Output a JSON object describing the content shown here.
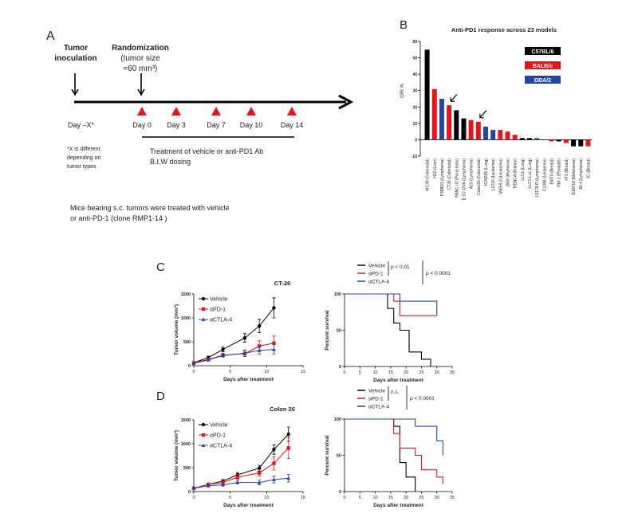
{
  "panel_labels": {
    "a": "A",
    "b": "B",
    "c": "C",
    "d": "D"
  },
  "timeline": {
    "inoculation_line1": "Tumor",
    "inoculation_line2": "inoculation",
    "randomization_title": "Randomization",
    "randomization_line2": "(tumor size",
    "randomization_line3": "≈60 mm³)",
    "day_x": "Day –X*",
    "dosing_days": [
      "Day 0",
      "Day 3",
      "Day 7",
      "Day 10",
      "Day 14"
    ],
    "footnote": [
      "*X is different",
      "depending on",
      "tumor types"
    ],
    "treatment": [
      "Treatment of vehicle or anti-PD1 Ab",
      "B.I.W dosing"
    ],
    "description": [
      "Mice bearing s.c. tumors were treated with vehicle",
      "or anti-PD-1 (clone RMP1-14 )"
    ],
    "triangle_color": "#e8141c"
  },
  "colors": {
    "C57BL/6": "#000000",
    "BALB/c": "#e8141c",
    "DBA/2": "#2346a8",
    "Vehicle": "#000000",
    "αPD-1": "#e8141c",
    "αCTLA-4": "#2346a8"
  },
  "chart_data": [
    {
      "type": "bar",
      "title": "Anti-PD1 response across 23 models",
      "ylabel": "GRI %",
      "ylim": [
        -10,
        60
      ],
      "yticks": [
        -10,
        0,
        10,
        20,
        30,
        40,
        50,
        60
      ],
      "legend": [
        "C57BL/6",
        "BALB/c",
        "DBA/2"
      ],
      "legend_placement": "top-right",
      "categories": [
        "MC38 (Colorectal)",
        "H22 (Liver)",
        "P388D1 (Lymphoma)",
        "CT26 (Colorectal)",
        "PANC 02 (Pancreatic)",
        "E.G7-OVA (Lymphoma)",
        "A20 (Lymphoma)",
        "Colon26 (Colorectal)",
        "KLN205 (Lung)",
        "L1210 (Leukemia)",
        "WEHI-3 (Leukemia)",
        "J558 (Myeloma)",
        "RENCA (Kidney)",
        "LLC1 (Lung)",
        "LLC1-Luc (Lung)",
        "L5178-R (Lymphoma)",
        "C1498 (Leukemia)",
        "EMT6 (Breast)",
        "RM-1 (Prostate)",
        "4T1 (Breast)",
        "B16F10 (Melanoma)",
        "EL4 (Lymphoma)",
        "JC (Breast)"
      ],
      "values": [
        55,
        31,
        25,
        21,
        18,
        13,
        12,
        11,
        8,
        6,
        6,
        5,
        3,
        1,
        1,
        1,
        0,
        -1,
        -1,
        -2,
        -4,
        -4,
        -4
      ],
      "strain": [
        "C57BL/6",
        "BALB/c",
        "DBA/2",
        "BALB/c",
        "C57BL/6",
        "C57BL/6",
        "BALB/c",
        "BALB/c",
        "DBA/2",
        "DBA/2",
        "BALB/c",
        "BALB/c",
        "BALB/c",
        "C57BL/6",
        "C57BL/6",
        "DBA/2",
        "C57BL/6",
        "BALB/c",
        "C57BL/6",
        "BALB/c",
        "C57BL/6",
        "C57BL/6",
        "BALB/c"
      ],
      "arrows_at": [
        "CT26 (Colorectal)",
        "Colon26 (Colorectal)"
      ]
    },
    {
      "type": "line",
      "title": "CT-26",
      "xlabel": "Days after treatment",
      "ylabel": "Tumor volume (mm³)",
      "xlim": [
        0,
        15
      ],
      "ylim": [
        0,
        1500
      ],
      "xticks": [
        0,
        5,
        10,
        15
      ],
      "yticks": [
        0,
        500,
        1000,
        1500
      ],
      "legend_placement": "top-left",
      "series": [
        {
          "name": "Vehicle",
          "marker": "circle",
          "x": [
            0,
            2,
            4,
            7,
            9,
            11
          ],
          "y": [
            60,
            170,
            340,
            580,
            830,
            1210
          ],
          "err": [
            10,
            30,
            50,
            90,
            140,
            210
          ]
        },
        {
          "name": "αPD-1",
          "marker": "square",
          "x": [
            0,
            2,
            4,
            7,
            9,
            11
          ],
          "y": [
            60,
            130,
            220,
            250,
            410,
            470
          ],
          "err": [
            10,
            20,
            40,
            60,
            110,
            150
          ]
        },
        {
          "name": "αCTLA-4",
          "marker": "triangle",
          "x": [
            0,
            2,
            4,
            7,
            9,
            11
          ],
          "y": [
            50,
            120,
            210,
            260,
            320,
            340
          ],
          "err": [
            10,
            20,
            30,
            70,
            80,
            100
          ]
        }
      ]
    },
    {
      "type": "line",
      "subtype": "survival-step",
      "xlabel": "Days after treatment",
      "ylabel": "Percent survival",
      "xlim": [
        0,
        35
      ],
      "ylim": [
        0,
        100
      ],
      "xticks": [
        0,
        5,
        10,
        15,
        20,
        25,
        30,
        35
      ],
      "yticks": [
        0,
        50,
        100
      ],
      "legend_placement": "top",
      "annotations": [
        "p < 0.01",
        "p < 0.0001"
      ],
      "series": [
        {
          "name": "Vehicle",
          "x": [
            0,
            14,
            16,
            18,
            21,
            25,
            28
          ],
          "y": [
            100,
            80,
            60,
            50,
            20,
            10,
            0
          ]
        },
        {
          "name": "αPD-1",
          "x": [
            0,
            16,
            18,
            30
          ],
          "y": [
            100,
            90,
            70,
            70
          ]
        },
        {
          "name": "αCTLA-4",
          "x": [
            0,
            18,
            30,
            30
          ],
          "y": [
            100,
            90,
            90,
            70
          ]
        }
      ]
    },
    {
      "type": "line",
      "title": "Colon 26",
      "xlabel": "Days after treatment",
      "ylabel": "Tumor volume (mm³)",
      "xlim": [
        0,
        15
      ],
      "ylim": [
        0,
        1500
      ],
      "xticks": [
        0,
        5,
        10,
        15
      ],
      "yticks": [
        0,
        500,
        1000,
        1500
      ],
      "legend_placement": "top-left",
      "series": [
        {
          "name": "Vehicle",
          "marker": "circle",
          "x": [
            0,
            2,
            4,
            6,
            9,
            11,
            13
          ],
          "y": [
            70,
            150,
            220,
            350,
            490,
            880,
            1200
          ],
          "err": [
            10,
            20,
            30,
            50,
            60,
            100,
            150
          ]
        },
        {
          "name": "αPD-1",
          "marker": "square",
          "x": [
            0,
            2,
            4,
            6,
            9,
            11,
            13
          ],
          "y": [
            70,
            150,
            190,
            300,
            390,
            590,
            910
          ],
          "err": [
            10,
            20,
            30,
            50,
            70,
            140,
            220
          ]
        },
        {
          "name": "αCTLA-4",
          "marker": "triangle",
          "x": [
            0,
            2,
            4,
            6,
            9,
            11,
            13
          ],
          "y": [
            70,
            120,
            140,
            190,
            190,
            250,
            280
          ],
          "err": [
            10,
            20,
            20,
            30,
            50,
            70,
            80
          ]
        }
      ]
    },
    {
      "type": "line",
      "subtype": "survival-step",
      "xlabel": "Days after treatment",
      "ylabel": "Percent survival",
      "xlim": [
        0,
        35
      ],
      "ylim": [
        0,
        100
      ],
      "xticks": [
        0,
        5,
        10,
        15,
        20,
        25,
        30,
        35
      ],
      "yticks": [
        0,
        50,
        100
      ],
      "legend_placement": "top",
      "annotations": [
        "n.s.",
        "p < 0.0001"
      ],
      "series": [
        {
          "name": "Vehicle",
          "x": [
            0,
            16,
            18,
            20,
            23
          ],
          "y": [
            100,
            90,
            40,
            20,
            0
          ]
        },
        {
          "name": "αPD-1",
          "x": [
            0,
            16,
            18,
            23,
            25,
            30,
            32,
            32
          ],
          "y": [
            100,
            80,
            60,
            50,
            30,
            20,
            10,
            10
          ]
        },
        {
          "name": "αCTLA-4",
          "x": [
            0,
            23,
            30,
            32,
            32
          ],
          "y": [
            100,
            90,
            70,
            50,
            50
          ]
        }
      ]
    }
  ]
}
